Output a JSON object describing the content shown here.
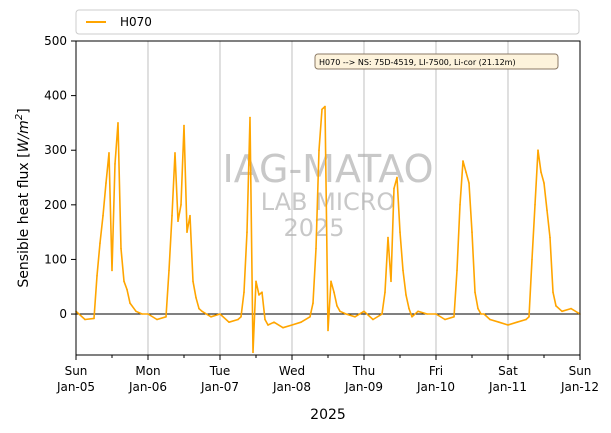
{
  "chart_data": {
    "type": "line",
    "title": "",
    "xlabel": "2025",
    "ylabel": "Sensible heat flux [W/m²]",
    "ylim": [
      -75,
      500
    ],
    "yticks": [
      0,
      100,
      200,
      300,
      400,
      500
    ],
    "xlim": [
      "2025-01-05 00:00",
      "2025-01-12 00:00"
    ],
    "xticks": [
      {
        "day": "Sun",
        "date": "Jan-05"
      },
      {
        "day": "Mon",
        "date": "Jan-06"
      },
      {
        "day": "Tue",
        "date": "Jan-07"
      },
      {
        "day": "Wed",
        "date": "Jan-08"
      },
      {
        "day": "Thu",
        "date": "Jan-09"
      },
      {
        "day": "Fri",
        "date": "Jan-10"
      },
      {
        "day": "Sat",
        "date": "Jan-11"
      },
      {
        "day": "Sun",
        "date": "Jan-12"
      }
    ],
    "grid": "vertical lines at day ticks",
    "zero_line": true,
    "legend": {
      "placement": "top, above plot",
      "entries": [
        "H070"
      ]
    },
    "annotation": "H070 --> NS: 75D-4519, LI-7500, Li-cor (21.12m)",
    "watermark": [
      "IAG-MATAO",
      "LAB MICRO",
      "2025"
    ],
    "colors": {
      "series": "#ffa500",
      "grid": "#b0b0b0",
      "annotation_bg": "#fdf3dc",
      "annotation_border": "#8b7a66",
      "watermark": "#c8c8c8"
    },
    "series": [
      {
        "name": "H070",
        "x": [
          "2025-01-05 00:00",
          "2025-01-05 03:00",
          "2025-01-05 06:00",
          "2025-01-05 07:00",
          "2025-01-05 08:00",
          "2025-01-05 09:00",
          "2025-01-05 10:00",
          "2025-01-05 11:00",
          "2025-01-05 12:00",
          "2025-01-05 13:00",
          "2025-01-05 14:00",
          "2025-01-05 15:00",
          "2025-01-05 16:00",
          "2025-01-05 17:00",
          "2025-01-05 18:00",
          "2025-01-05 20:00",
          "2025-01-05 22:00",
          "2025-01-06 00:00",
          "2025-01-06 03:00",
          "2025-01-06 06:00",
          "2025-01-06 07:00",
          "2025-01-06 08:00",
          "2025-01-06 09:00",
          "2025-01-06 10:00",
          "2025-01-06 11:00",
          "2025-01-06 12:00",
          "2025-01-06 13:00",
          "2025-01-06 14:00",
          "2025-01-06 15:00",
          "2025-01-06 16:00",
          "2025-01-06 17:00",
          "2025-01-06 18:00",
          "2025-01-06 21:00",
          "2025-01-07 00:00",
          "2025-01-07 03:00",
          "2025-01-07 06:00",
          "2025-01-07 07:00",
          "2025-01-07 08:00",
          "2025-01-07 09:00",
          "2025-01-07 10:00",
          "2025-01-07 11:00",
          "2025-01-07 12:00",
          "2025-01-07 13:00",
          "2025-01-07 14:00",
          "2025-01-07 15:00",
          "2025-01-07 16:00",
          "2025-01-07 18:00",
          "2025-01-07 21:00",
          "2025-01-08 00:00",
          "2025-01-08 03:00",
          "2025-01-08 06:00",
          "2025-01-08 07:00",
          "2025-01-08 08:00",
          "2025-01-08 09:00",
          "2025-01-08 10:00",
          "2025-01-08 11:00",
          "2025-01-08 12:00",
          "2025-01-08 13:00",
          "2025-01-08 14:00",
          "2025-01-08 15:00",
          "2025-01-08 16:00",
          "2025-01-08 18:00",
          "2025-01-08 21:00",
          "2025-01-09 00:00",
          "2025-01-09 03:00",
          "2025-01-09 06:00",
          "2025-01-09 07:00",
          "2025-01-09 08:00",
          "2025-01-09 09:00",
          "2025-01-09 10:00",
          "2025-01-09 11:00",
          "2025-01-09 12:00",
          "2025-01-09 13:00",
          "2025-01-09 14:00",
          "2025-01-09 15:00",
          "2025-01-09 16:00",
          "2025-01-09 18:00",
          "2025-01-09 21:00",
          "2025-01-10 00:00",
          "2025-01-10 03:00",
          "2025-01-10 06:00",
          "2025-01-10 07:00",
          "2025-01-10 08:00",
          "2025-01-10 09:00",
          "2025-01-10 10:00",
          "2025-01-10 11:00",
          "2025-01-10 12:00",
          "2025-01-10 13:00",
          "2025-01-10 14:00",
          "2025-01-10 15:00",
          "2025-01-10 16:00",
          "2025-01-10 18:00",
          "2025-01-10 21:00",
          "2025-01-11 00:00",
          "2025-01-11 03:00",
          "2025-01-11 06:00",
          "2025-01-11 07:00",
          "2025-01-11 08:00",
          "2025-01-11 09:00",
          "2025-01-11 10:00",
          "2025-01-11 11:00",
          "2025-01-11 12:00",
          "2025-01-11 13:00",
          "2025-01-11 14:00",
          "2025-01-11 15:00",
          "2025-01-11 16:00",
          "2025-01-11 18:00",
          "2025-01-11 21:00",
          "2025-01-12 00:00"
        ],
        "values": [
          5,
          -10,
          -8,
          70,
          130,
          180,
          240,
          295,
          80,
          275,
          350,
          120,
          60,
          45,
          20,
          5,
          0,
          0,
          -10,
          -5,
          80,
          180,
          295,
          170,
          200,
          345,
          150,
          180,
          60,
          30,
          10,
          5,
          -5,
          0,
          -15,
          -10,
          -5,
          40,
          150,
          360,
          -70,
          60,
          35,
          40,
          -10,
          -20,
          -15,
          -25,
          -20,
          -15,
          -5,
          20,
          120,
          300,
          375,
          380,
          -30,
          60,
          40,
          15,
          5,
          0,
          -5,
          5,
          -10,
          0,
          40,
          140,
          60,
          230,
          250,
          150,
          80,
          35,
          10,
          -5,
          5,
          0,
          0,
          -10,
          -5,
          80,
          200,
          280,
          260,
          240,
          150,
          40,
          10,
          0,
          0,
          -10,
          -15,
          -20,
          -15,
          -10,
          -5,
          100,
          200,
          300,
          260,
          240,
          190,
          140,
          40,
          15,
          5,
          10,
          0
        ]
      }
    ]
  }
}
